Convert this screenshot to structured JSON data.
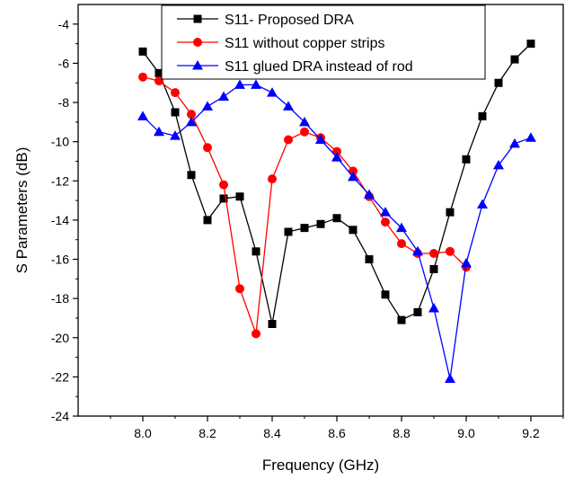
{
  "chart_data": {
    "type": "line",
    "title": "",
    "xlabel": "Frequency (GHz)",
    "ylabel": "S Parameters (dB)",
    "xlim": [
      7.8,
      9.3
    ],
    "ylim": [
      -24,
      -3
    ],
    "xticks": [
      "8.0",
      "8.2",
      "8.4",
      "8.6",
      "8.8",
      "9.0",
      "9.2"
    ],
    "yticks": [
      "-24",
      "-22",
      "-20",
      "-18",
      "-16",
      "-14",
      "-12",
      "-10",
      "-8",
      "-6",
      "-4"
    ],
    "grid": false,
    "legend_position": "top-right",
    "series": [
      {
        "name": "S11- Proposed DRA",
        "color": "#000000",
        "marker": "square",
        "x": [
          8.0,
          8.05,
          8.1,
          8.15,
          8.2,
          8.25,
          8.3,
          8.35,
          8.4,
          8.45,
          8.5,
          8.55,
          8.6,
          8.65,
          8.7,
          8.75,
          8.8,
          8.85,
          8.9,
          8.95,
          9.0,
          9.05,
          9.1,
          9.15,
          9.2
        ],
        "values": [
          -5.4,
          -6.5,
          -8.5,
          -11.7,
          -14.0,
          -12.9,
          -12.8,
          -15.6,
          -19.3,
          -14.6,
          -14.4,
          -14.2,
          -13.9,
          -14.5,
          -16.0,
          -17.8,
          -19.1,
          -18.7,
          -16.5,
          -13.6,
          -10.9,
          -8.7,
          -7.0,
          -5.8,
          -5.0
        ]
      },
      {
        "name": "S11 without copper strips",
        "color": "#ff0000",
        "marker": "circle",
        "x": [
          8.0,
          8.05,
          8.1,
          8.15,
          8.2,
          8.25,
          8.3,
          8.35,
          8.4,
          8.45,
          8.5,
          8.55,
          8.6,
          8.65,
          8.7,
          8.75,
          8.8,
          8.85,
          8.9,
          8.95,
          9.0
        ],
        "values": [
          -6.7,
          -6.9,
          -7.5,
          -8.6,
          -10.3,
          -12.2,
          -17.5,
          -19.8,
          -11.9,
          -9.9,
          -9.5,
          -9.8,
          -10.5,
          -11.5,
          -12.8,
          -14.1,
          -15.2,
          -15.7,
          -15.7,
          -15.6,
          -16.4
        ]
      },
      {
        "name": "S11 glued DRA instead of rod",
        "color": "#0000ff",
        "marker": "triangle",
        "x": [
          8.0,
          8.05,
          8.1,
          8.15,
          8.2,
          8.25,
          8.3,
          8.35,
          8.4,
          8.45,
          8.5,
          8.55,
          8.6,
          8.65,
          8.7,
          8.75,
          8.8,
          8.85,
          8.9,
          8.95,
          9.0,
          9.05,
          9.1,
          9.15,
          9.2
        ],
        "values": [
          -8.7,
          -9.5,
          -9.7,
          -9.0,
          -8.2,
          -7.7,
          -7.1,
          -7.1,
          -7.5,
          -8.2,
          -9.0,
          -9.9,
          -10.8,
          -11.8,
          -12.7,
          -13.6,
          -14.4,
          -15.6,
          -18.5,
          -22.1,
          -16.2,
          -13.2,
          -11.2,
          -10.1,
          -9.8
        ]
      }
    ]
  }
}
